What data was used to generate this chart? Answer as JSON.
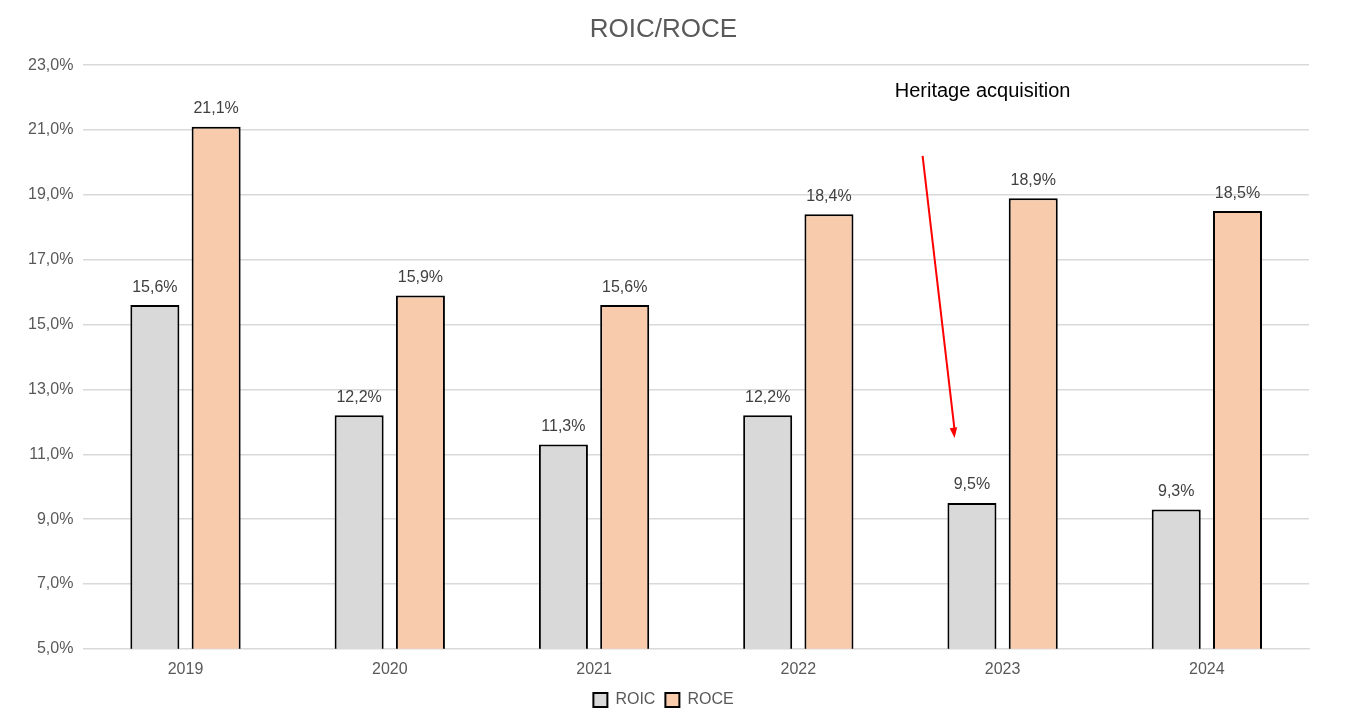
{
  "chart_data": {
    "type": "bar",
    "title": "ROIC/ROCE",
    "categories": [
      "2019",
      "2020",
      "2021",
      "2022",
      "2023",
      "2024"
    ],
    "series": [
      {
        "name": "ROIC",
        "color": "#d9d9d9",
        "values": [
          15.6,
          12.2,
          11.3,
          12.2,
          9.5,
          9.3
        ],
        "value_labels": [
          "15,6%",
          "12,2%",
          "11,3%",
          "12,2%",
          "9,5%",
          "9,3%"
        ]
      },
      {
        "name": "ROCE",
        "color": "#f8cbad",
        "values": [
          21.1,
          15.9,
          15.6,
          18.4,
          18.9,
          18.5
        ],
        "value_labels": [
          "21,1%",
          "15,9%",
          "15,6%",
          "18,4%",
          "18,9%",
          "18,5%"
        ]
      }
    ],
    "ylim": [
      5,
      23
    ],
    "yticks": [
      {
        "value": 5,
        "label": "5,0%"
      },
      {
        "value": 7,
        "label": "7,0%"
      },
      {
        "value": 9,
        "label": "9,0%"
      },
      {
        "value": 11,
        "label": "11,0%"
      },
      {
        "value": 13,
        "label": "13,0%"
      },
      {
        "value": 15,
        "label": "15,0%"
      },
      {
        "value": 17,
        "label": "17,0%"
      },
      {
        "value": 19,
        "label": "19,0%"
      },
      {
        "value": 21,
        "label": "21,0%"
      },
      {
        "value": 23,
        "label": "23,0%"
      }
    ],
    "grid": "y",
    "legend": "bottom",
    "annotations": [
      "Heritage acquisition"
    ]
  }
}
